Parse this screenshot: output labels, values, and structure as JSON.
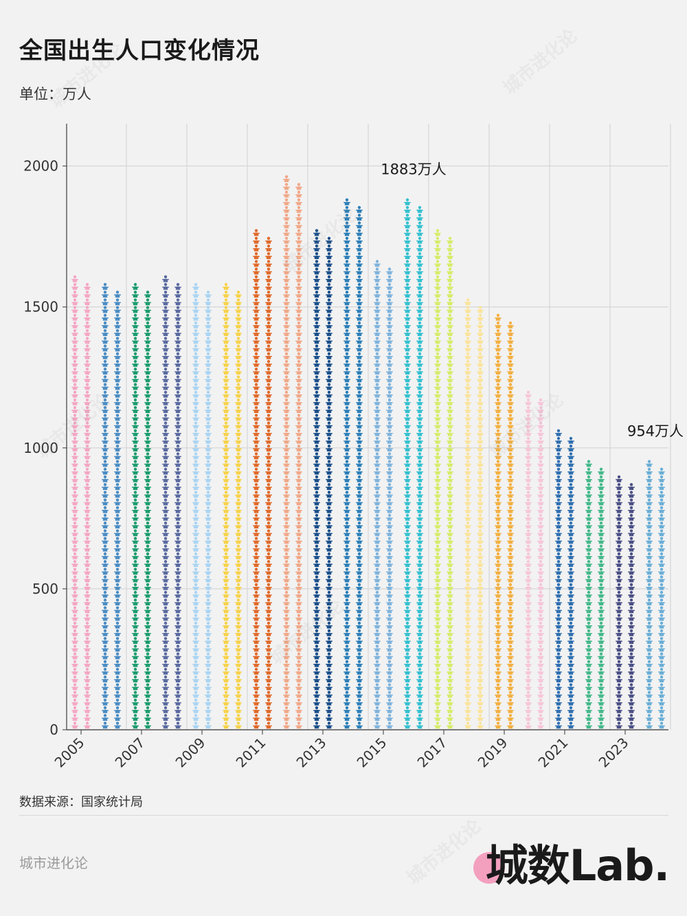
{
  "header": {
    "title": "全国出生人口变化情况",
    "unit": "单位：万人"
  },
  "source": "数据来源：国家统计局",
  "footer": {
    "brand_left": "城市进化论",
    "logo": "城数Lab."
  },
  "watermark": "城市进化论",
  "chart_data": {
    "type": "bar",
    "categories": [
      2005,
      2006,
      2007,
      2008,
      2009,
      2010,
      2011,
      2012,
      2013,
      2014,
      2015,
      2016,
      2017,
      2018,
      2019,
      2020,
      2021,
      2022,
      2023,
      2024
    ],
    "values": [
      1617,
      1585,
      1595,
      1608,
      1591,
      1592,
      1785,
      1973,
      1776,
      1897,
      1655,
      1883,
      1765,
      1523,
      1465,
      1200,
      1062,
      956,
      902,
      954
    ],
    "xticks": [
      "2005",
      "2007",
      "2009",
      "2011",
      "2013",
      "2015",
      "2017",
      "2019",
      "2021",
      "2023"
    ],
    "yticks": [
      0,
      500,
      1000,
      1500,
      2000
    ],
    "ylim": [
      0,
      2150
    ],
    "grid": true,
    "colors": [
      "#f4a6c4",
      "#4a8cc4",
      "#1b9c6e",
      "#5a6aa0",
      "#aad4f2",
      "#f7d24a",
      "#e06a2a",
      "#f0a888",
      "#1a4f8a",
      "#2c7fb8",
      "#7fb3dc",
      "#34c0d0",
      "#d6ec6a",
      "#fbe39a",
      "#f2b042",
      "#f6c6d8",
      "#2f6fb0",
      "#44b88a",
      "#4a4f85",
      "#6aaed6"
    ],
    "annotations": [
      {
        "year": 2016,
        "text": "1883万人"
      },
      {
        "year": 2024,
        "text": "954万人"
      }
    ]
  }
}
